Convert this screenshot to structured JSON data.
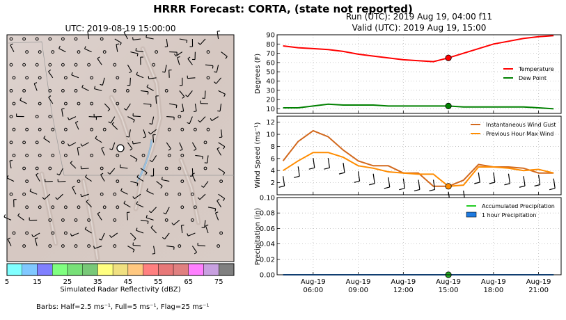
{
  "header": {
    "title": "HRRR Forecast: CORTA, (state not reported)",
    "run": "Run (UTC): 2019 Aug 19, 04:00 f11",
    "valid": "Valid (UTC): 2019 Aug 19, 15:00"
  },
  "map": {
    "title": "UTC: 2019-08-19 15:00:00",
    "colorbar": {
      "label": "Simulated Radar Reflectivity (dBZ)",
      "ticks": [
        "5",
        "15",
        "25",
        "35",
        "45",
        "55",
        "65",
        "75"
      ],
      "colors": [
        "#80ffff",
        "#80c8ff",
        "#8080ff",
        "#80ff80",
        "#78e078",
        "#78c878",
        "#ffff80",
        "#f0e080",
        "#ffc880",
        "#ff8080",
        "#e87878",
        "#e08080",
        "#ff80ff",
        "#c8a0e0",
        "#808080"
      ]
    },
    "barbs_note": "Barbs: Half=2.5 ms⁻¹, Full=5 ms⁻¹, Flag=25 ms⁻¹"
  },
  "chart_data": [
    {
      "type": "line",
      "panel": "temperature",
      "ylabel": "Degrees (F)",
      "ylim": [
        5,
        90
      ],
      "yticks": [
        "10",
        "20",
        "30",
        "40",
        "50",
        "60",
        "70",
        "80",
        "90"
      ],
      "x": [
        4,
        5,
        6,
        7,
        8,
        9,
        10,
        11,
        12,
        13,
        14,
        15,
        16,
        17,
        18,
        19,
        20,
        21,
        22
      ],
      "series": [
        {
          "name": "Temperature",
          "color": "#ff0000",
          "values": [
            78,
            76,
            75,
            74,
            72,
            69,
            67,
            65,
            63,
            62,
            61,
            65,
            70,
            75,
            80,
            83,
            86,
            88,
            89
          ]
        },
        {
          "name": "Dew Point",
          "color": "#008000",
          "values": [
            11,
            11,
            13,
            15,
            14,
            14,
            14,
            13,
            13,
            13,
            13,
            13,
            12,
            12,
            12,
            12,
            12,
            11,
            10
          ]
        }
      ],
      "marker_time": 15,
      "legend": "right"
    },
    {
      "type": "line",
      "panel": "wind",
      "ylabel": "Wind Speed (ms⁻¹)",
      "ylim": [
        0,
        13
      ],
      "yticks": [
        "2",
        "4",
        "6",
        "8",
        "10",
        "12"
      ],
      "x": [
        4,
        5,
        6,
        7,
        8,
        9,
        10,
        11,
        12,
        13,
        14,
        15,
        16,
        17,
        18,
        19,
        20,
        21,
        22
      ],
      "series": [
        {
          "name": "Instantaneous Wind Gust",
          "color": "#d2691e",
          "values": [
            5.6,
            8.8,
            10.6,
            9.6,
            7.4,
            5.6,
            4.8,
            4.8,
            3.6,
            3.6,
            1.4,
            1.4,
            2.4,
            5.0,
            4.6,
            4.6,
            4.4,
            3.6,
            3.6
          ]
        },
        {
          "name": "Previous Hour Max Wind",
          "color": "#ff8c00",
          "values": [
            4.0,
            5.6,
            7.0,
            7.0,
            6.2,
            4.8,
            4.4,
            3.8,
            3.6,
            3.4,
            3.4,
            1.4,
            1.6,
            4.6,
            4.6,
            4.4,
            4.0,
            4.2,
            3.6
          ]
        }
      ],
      "marker_time": 15,
      "legend": "top-right"
    },
    {
      "type": "line",
      "panel": "precipitation",
      "ylabel": "Precipitation (in)",
      "ylim": [
        0,
        0.1
      ],
      "yticks": [
        "0.00",
        "0.02",
        "0.04",
        "0.06",
        "0.08",
        "0.10"
      ],
      "x": [
        4,
        5,
        6,
        7,
        8,
        9,
        10,
        11,
        12,
        13,
        14,
        15,
        16,
        17,
        18,
        19,
        20,
        21,
        22
      ],
      "series": [
        {
          "name": "Accumulated Precipitation",
          "color": "#22cc22",
          "values": [
            0,
            0,
            0,
            0,
            0,
            0,
            0,
            0,
            0,
            0,
            0,
            0,
            0,
            0,
            0,
            0,
            0,
            0,
            0
          ]
        },
        {
          "name": "1 hour Precipitation",
          "color": "#1e7ae0",
          "values": [
            0,
            0,
            0,
            0,
            0,
            0,
            0,
            0,
            0,
            0,
            0,
            0,
            0,
            0,
            0,
            0,
            0,
            0,
            0
          ]
        }
      ],
      "marker_time": 15,
      "legend": "top-right"
    }
  ],
  "xaxis": {
    "ticks": [
      {
        "t": 6,
        "line1": "Aug-19",
        "line2": "06:00"
      },
      {
        "t": 9,
        "line1": "Aug-19",
        "line2": "09:00"
      },
      {
        "t": 12,
        "line1": "Aug-19",
        "line2": "12:00"
      },
      {
        "t": 15,
        "line1": "Aug-19",
        "line2": "15:00"
      },
      {
        "t": 18,
        "line1": "Aug-19",
        "line2": "18:00"
      },
      {
        "t": 21,
        "line1": "Aug-19",
        "line2": "21:00"
      }
    ]
  }
}
